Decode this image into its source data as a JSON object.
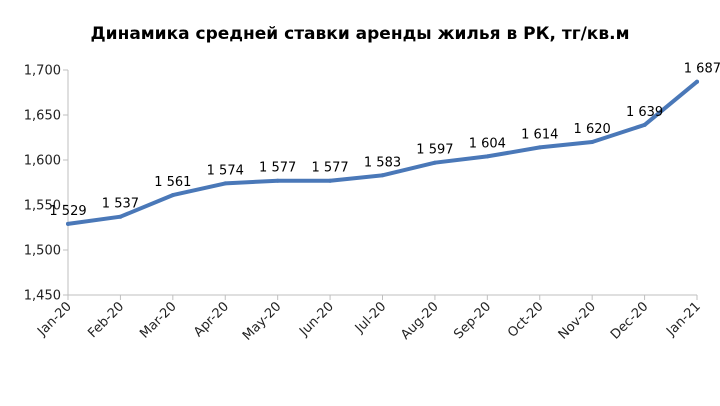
{
  "chart_data": {
    "type": "line",
    "title": "Динамика средней ставки аренды жилья в РК, тг/кв.м",
    "xlabel": "",
    "ylabel": "",
    "categories": [
      "Jan-20",
      "Feb-20",
      "Mar-20",
      "Apr-20",
      "May-20",
      "Jun-20",
      "Jul-20",
      "Aug-20",
      "Sep-20",
      "Oct-20",
      "Nov-20",
      "Dec-20",
      "Jan-21"
    ],
    "values": [
      1529,
      1537,
      1561,
      1574,
      1577,
      1577,
      1583,
      1597,
      1604,
      1614,
      1620,
      1639,
      1687
    ],
    "data_labels": [
      "1 529",
      "1 537",
      "1 561",
      "1 574",
      "1 577",
      "1 577",
      "1 583",
      "1 597",
      "1 604",
      "1 614",
      "1 620",
      "1 639",
      "1 687"
    ],
    "ylim": [
      1450,
      1700
    ],
    "yticks": [
      1450,
      1500,
      1550,
      1600,
      1650,
      1700
    ],
    "ytick_labels": [
      "1,450",
      "1,500",
      "1,550",
      "1,600",
      "1,650",
      "1,700"
    ],
    "grid": false,
    "legend": "none",
    "line_color": "#4a78b8"
  }
}
